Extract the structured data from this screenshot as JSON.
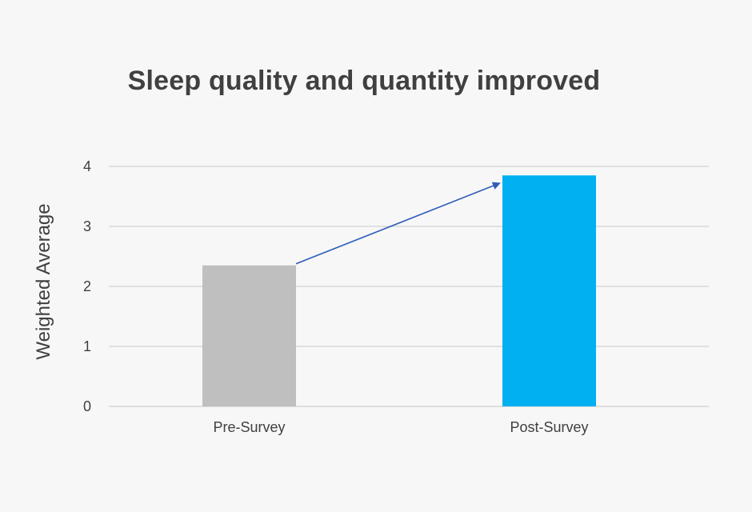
{
  "chart_data": {
    "type": "bar",
    "title": "Sleep quality and quantity improved",
    "xlabel": "",
    "ylabel": "Weighted Average",
    "categories": [
      "Pre-Survey",
      "Post-Survey"
    ],
    "values": [
      2.35,
      3.85
    ],
    "ylim": [
      0,
      4
    ],
    "yticks": [
      0,
      1,
      2,
      3,
      4
    ],
    "grid": true,
    "legend": "none",
    "colors": [
      "#bfbfbf",
      "#00b0f0"
    ],
    "arrow_color": "#2e5cb8",
    "gridline_color": "#d9d9d9",
    "annotation": "arrow from Pre-Survey bar top to Post-Survey bar top"
  }
}
